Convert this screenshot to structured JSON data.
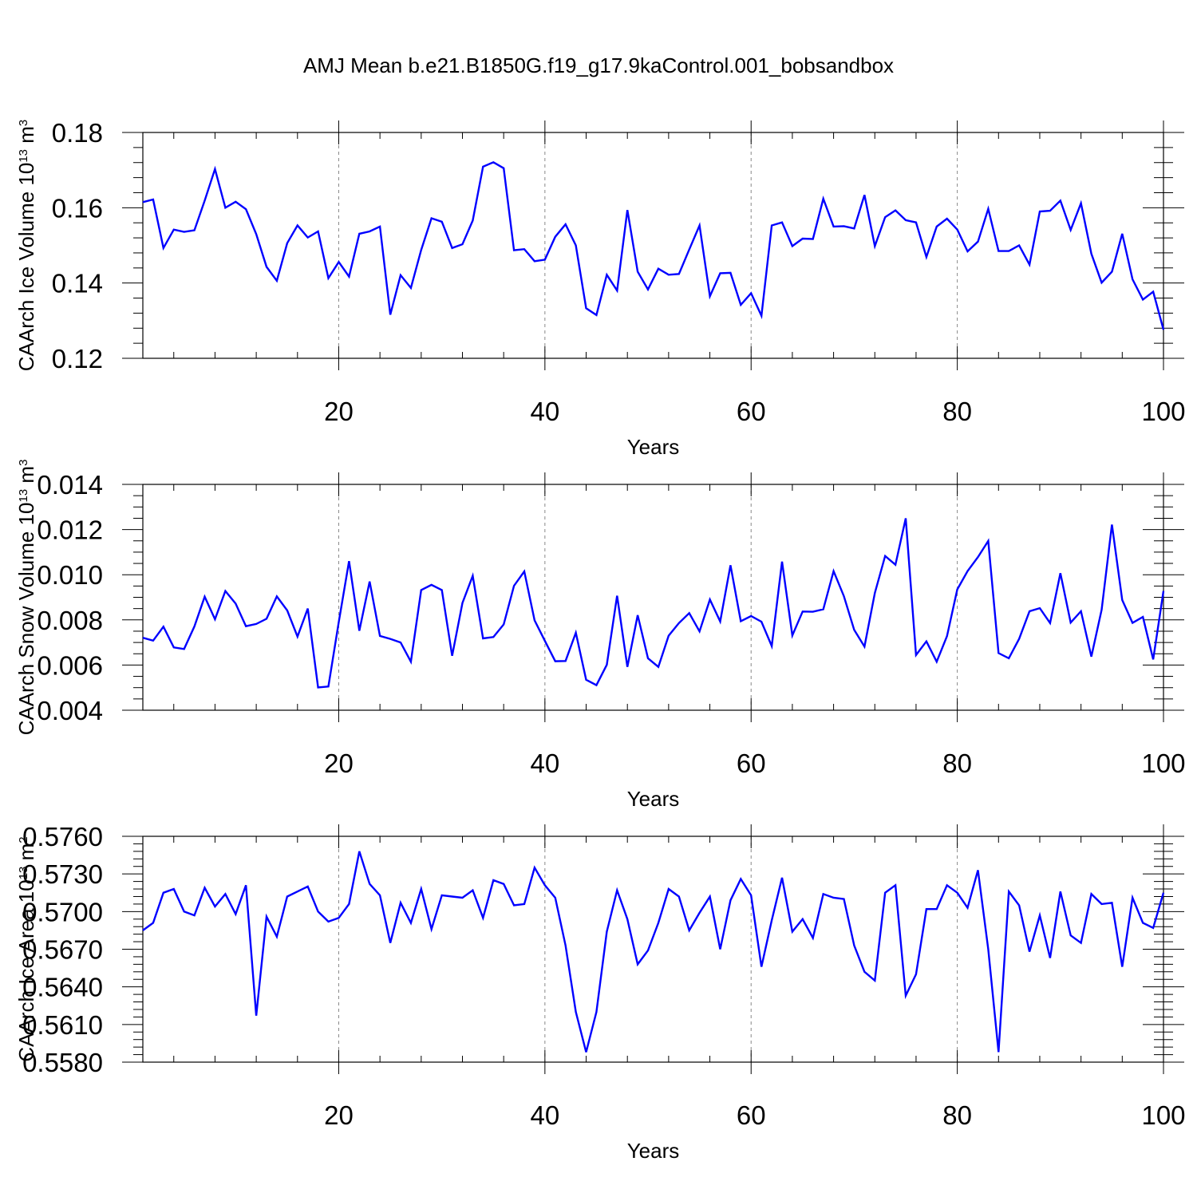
{
  "figure_title": "AMJ Mean b.e21.B1850G.f19_g17.9kaControl.001_bobsandbox",
  "colors": {
    "series": "#0000ff",
    "grid": "#888888",
    "axes": "#000000"
  },
  "chart_data": [
    {
      "type": "line",
      "ylabel": "CAArch Ice Volume 10¹³ m³",
      "ylabel_main": "CAArch Ice Volume 10",
      "ylabel_exp1": "13",
      "ylabel_mid": " m",
      "ylabel_exp2": "3",
      "xlabel": "Years",
      "xlim": [
        1,
        100
      ],
      "ylim": [
        0.12,
        0.18
      ],
      "x_major_ticks": [
        20,
        40,
        60,
        80,
        100
      ],
      "x_tick_labels": [
        "20",
        "40",
        "60",
        "80",
        "100"
      ],
      "y_major_ticks": [
        0.12,
        0.14,
        0.16,
        0.18
      ],
      "y_tick_labels": [
        "0.12",
        "0.14",
        "0.16",
        "0.18"
      ],
      "y_minor_step": 0.004,
      "grid": "vertical dashed at major x ticks",
      "series": [
        {
          "values": [
            0.1615,
            0.1622,
            0.1493,
            0.1542,
            0.1536,
            0.154,
            0.1619,
            0.1703,
            0.16,
            0.1616,
            0.1596,
            0.153,
            0.1443,
            0.1406,
            0.1506,
            0.1553,
            0.1521,
            0.1537,
            0.1413,
            0.1456,
            0.1417,
            0.1531,
            0.1537,
            0.155,
            0.1316,
            0.1421,
            0.1387,
            0.1488,
            0.1572,
            0.1563,
            0.1493,
            0.1503,
            0.1566,
            0.1709,
            0.1721,
            0.1705,
            0.1487,
            0.149,
            0.1458,
            0.1462,
            0.1523,
            0.1556,
            0.15,
            0.1333,
            0.1315,
            0.1422,
            0.138,
            0.1594,
            0.143,
            0.1383,
            0.1438,
            0.1422,
            0.1424,
            0.1489,
            0.1553,
            0.1365,
            0.1426,
            0.1427,
            0.1342,
            0.1373,
            0.1313,
            0.1553,
            0.1561,
            0.1498,
            0.1518,
            0.1517,
            0.1624,
            0.155,
            0.1551,
            0.1545,
            0.1634,
            0.1498,
            0.1575,
            0.1593,
            0.1567,
            0.1561,
            0.1469,
            0.155,
            0.1571,
            0.1542,
            0.1484,
            0.151,
            0.1597,
            0.1485,
            0.1485,
            0.15,
            0.1449,
            0.159,
            0.1592,
            0.1619,
            0.1541,
            0.1612,
            0.1478,
            0.1401,
            0.143,
            0.1531,
            0.141,
            0.1356,
            0.1377,
            0.1276
          ]
        }
      ]
    },
    {
      "type": "line",
      "ylabel": "CAArch Snow Volume 10¹³ m³",
      "ylabel_main": "CAArch Snow Volume 10",
      "ylabel_exp1": "13",
      "ylabel_mid": " m",
      "ylabel_exp2": "3",
      "xlabel": "Years",
      "xlim": [
        1,
        100
      ],
      "ylim": [
        0.004,
        0.014
      ],
      "x_major_ticks": [
        20,
        40,
        60,
        80,
        100
      ],
      "x_tick_labels": [
        "20",
        "40",
        "60",
        "80",
        "100"
      ],
      "y_major_ticks": [
        0.004,
        0.006,
        0.008,
        0.01,
        0.012,
        0.014
      ],
      "y_tick_labels": [
        "0.004",
        "0.006",
        "0.008",
        "0.010",
        "0.012",
        "0.014"
      ],
      "y_minor_step": 0.0005,
      "grid": "vertical dashed at major x ticks",
      "series": [
        {
          "values": [
            0.00721,
            0.00708,
            0.0077,
            0.00678,
            0.00671,
            0.00771,
            0.00903,
            0.00803,
            0.00928,
            0.00872,
            0.00772,
            0.00782,
            0.00805,
            0.00904,
            0.00842,
            0.00726,
            0.0085,
            0.00501,
            0.00505,
            0.0079,
            0.0106,
            0.00752,
            0.0097,
            0.00729,
            0.00716,
            0.007,
            0.00615,
            0.00932,
            0.00955,
            0.00932,
            0.00641,
            0.00875,
            0.00995,
            0.00718,
            0.00724,
            0.0078,
            0.00951,
            0.01015,
            0.00798,
            0.00707,
            0.00617,
            0.00618,
            0.00743,
            0.00535,
            0.00511,
            0.00601,
            0.00907,
            0.00592,
            0.00821,
            0.0063,
            0.00592,
            0.0073,
            0.00786,
            0.0083,
            0.00749,
            0.0089,
            0.00793,
            0.01042,
            0.00794,
            0.00817,
            0.00792,
            0.00684,
            0.01058,
            0.00731,
            0.00837,
            0.00836,
            0.00847,
            0.01016,
            0.00905,
            0.00756,
            0.00682,
            0.00919,
            0.01083,
            0.01044,
            0.0125,
            0.00644,
            0.00705,
            0.00615,
            0.00728,
            0.00935,
            0.01016,
            0.01078,
            0.0115,
            0.00653,
            0.0063,
            0.00716,
            0.00838,
            0.00852,
            0.00786,
            0.01007,
            0.00788,
            0.00838,
            0.00637,
            0.00845,
            0.01222,
            0.00888,
            0.00787,
            0.00813,
            0.00625,
            0.00928
          ]
        }
      ]
    },
    {
      "type": "line",
      "ylabel": "CAArch Ice Area 10¹³ m²",
      "ylabel_main": "CAArch Ice Area 10",
      "ylabel_exp1": "13",
      "ylabel_mid": " m",
      "ylabel_exp2": "2",
      "xlabel": "Years",
      "xlim": [
        1,
        100
      ],
      "ylim": [
        0.558,
        0.576
      ],
      "x_major_ticks": [
        20,
        40,
        60,
        80,
        100
      ],
      "x_tick_labels": [
        "20",
        "40",
        "60",
        "80",
        "100"
      ],
      "y_major_ticks": [
        0.558,
        0.561,
        0.564,
        0.567,
        0.57,
        0.573,
        0.576
      ],
      "y_tick_labels": [
        "0.5580",
        "0.5610",
        "0.5640",
        "0.5670",
        "0.5700",
        "0.5730",
        "0.5760"
      ],
      "y_minor_step": 0.0006,
      "grid": "vertical dashed at major x ticks",
      "series": [
        {
          "values": [
            0.5685,
            0.5691,
            0.5715,
            0.5718,
            0.57,
            0.5697,
            0.5719,
            0.5704,
            0.5714,
            0.5698,
            0.5721,
            0.5617,
            0.5696,
            0.568,
            0.5712,
            0.5716,
            0.572,
            0.57,
            0.5692,
            0.5695,
            0.5706,
            0.5748,
            0.5722,
            0.5713,
            0.5675,
            0.5707,
            0.5691,
            0.5718,
            0.5686,
            0.5713,
            0.5712,
            0.5711,
            0.5717,
            0.5695,
            0.5725,
            0.5722,
            0.5705,
            0.5706,
            0.5735,
            0.5721,
            0.5711,
            0.5673,
            0.562,
            0.5588,
            0.562,
            0.5684,
            0.5717,
            0.5694,
            0.5658,
            0.5669,
            0.5691,
            0.5718,
            0.5712,
            0.5685,
            0.5699,
            0.5712,
            0.567,
            0.5709,
            0.5726,
            0.5713,
            0.5656,
            0.5693,
            0.5727,
            0.5684,
            0.5694,
            0.5679,
            0.5714,
            0.5711,
            0.571,
            0.5673,
            0.5652,
            0.5645,
            0.5715,
            0.5721,
            0.5633,
            0.565,
            0.5702,
            0.5702,
            0.5721,
            0.5715,
            0.5703,
            0.5733,
            0.567,
            0.5588,
            0.5716,
            0.5705,
            0.5668,
            0.5697,
            0.5663,
            0.5716,
            0.5681,
            0.5675,
            0.5714,
            0.5706,
            0.5707,
            0.5656,
            0.5711,
            0.5691,
            0.5687,
            0.5715
          ]
        }
      ]
    }
  ]
}
